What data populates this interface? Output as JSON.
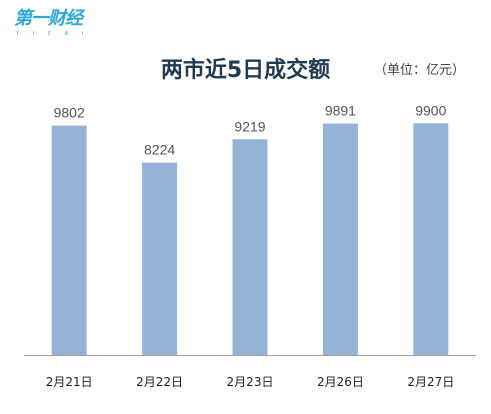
{
  "logo": {
    "text": "第一财经",
    "sub": "Y I C A I"
  },
  "unit_note": "（单位：亿元）",
  "chart_data": {
    "type": "bar",
    "title": "两市近5日成交额",
    "xlabel": "",
    "ylabel": "",
    "categories": [
      "2月21日",
      "2月22日",
      "2月23日",
      "2月26日",
      "2月27日"
    ],
    "values": [
      9802,
      8224,
      9219,
      9891,
      9900
    ],
    "ylim": [
      0,
      10000
    ],
    "grid": false,
    "legend": "none",
    "bar_color": "#94b3d7",
    "axis_color": "#a0a0a0"
  }
}
